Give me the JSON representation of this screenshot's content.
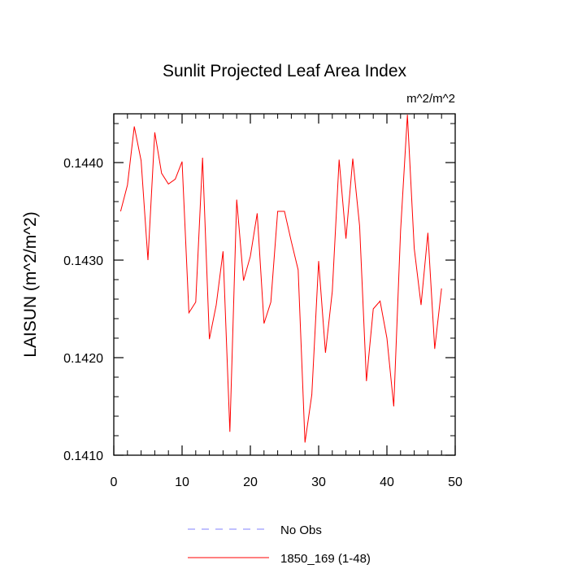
{
  "chart_data": {
    "type": "line",
    "title": "Sunlit Projected Leaf Area Index",
    "units_label": "m^2/m^2",
    "ylabel": "LAISUN  (m^2/m^2)",
    "xlabel": "",
    "xlim": [
      0,
      50
    ],
    "ylim": [
      0.141,
      0.1445
    ],
    "x_ticks": [
      0,
      10,
      20,
      30,
      40,
      50
    ],
    "x_tick_labels": [
      "0",
      "10",
      "20",
      "30",
      "40",
      "50"
    ],
    "y_ticks": [
      0.141,
      0.142,
      0.143,
      0.144
    ],
    "y_tick_labels": [
      "0.1410",
      "0.1420",
      "0.1430",
      "0.1440"
    ],
    "grid": false,
    "legend_position": "bottom-center",
    "colors": {
      "series": "#ff0000",
      "no_obs": "#8080ff"
    },
    "legend": [
      {
        "label": "No Obs",
        "style": "dashed"
      },
      {
        "label": "1850_169 (1-48)",
        "style": "solid"
      }
    ],
    "series": [
      {
        "name": "1850_169 (1-48)",
        "x": [
          1,
          2,
          3,
          4,
          5,
          6,
          7,
          8,
          9,
          10,
          11,
          12,
          13,
          14,
          15,
          16,
          17,
          18,
          19,
          20,
          21,
          22,
          23,
          24,
          25,
          26,
          27,
          28,
          29,
          30,
          31,
          32,
          33,
          34,
          35,
          36,
          37,
          38,
          39,
          40,
          41,
          42,
          43,
          44,
          45,
          46,
          47,
          48
        ],
        "y": [
          0.1435,
          0.14377,
          0.14437,
          0.14402,
          0.143,
          0.14431,
          0.14389,
          0.14378,
          0.14383,
          0.14401,
          0.14246,
          0.14257,
          0.14405,
          0.14219,
          0.14254,
          0.14309,
          0.14124,
          0.14362,
          0.14279,
          0.14304,
          0.14348,
          0.14235,
          0.14257,
          0.1435,
          0.1435,
          0.14319,
          0.1429,
          0.14113,
          0.14162,
          0.14299,
          0.14205,
          0.14268,
          0.14403,
          0.14322,
          0.14404,
          0.14335,
          0.14176,
          0.1425,
          0.14258,
          0.1422,
          0.1415,
          0.1433,
          0.14449,
          0.14312,
          0.14254,
          0.14328,
          0.14209,
          0.14271
        ]
      }
    ]
  }
}
